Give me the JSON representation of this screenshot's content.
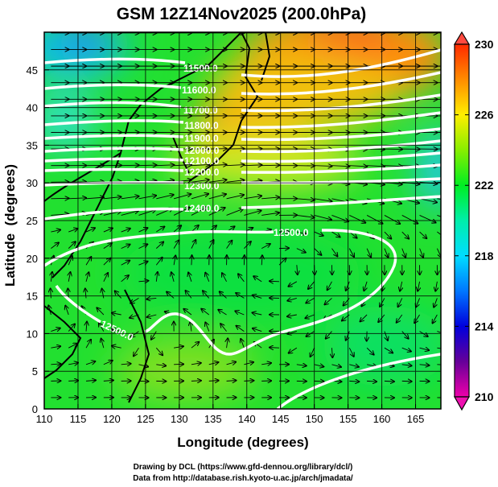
{
  "chart_data": {
    "type": "heatmap",
    "title": "GSM 12Z14Nov2025 (200.0hPa)",
    "xlabel": "Longitude (degrees)",
    "ylabel": "Latitude  (degrees)",
    "xlim": [
      110,
      168.75
    ],
    "ylim": [
      0,
      50
    ],
    "xticks": [
      "110",
      "115",
      "120",
      "125",
      "130",
      "135",
      "140",
      "145",
      "150",
      "155",
      "160",
      "165"
    ],
    "yticks": [
      "0",
      "5",
      "10",
      "15",
      "20",
      "25",
      "30",
      "35",
      "40",
      "45"
    ],
    "grid": true,
    "shading_variable": "temperature (K)",
    "colorbar": {
      "range": [
        210,
        230
      ],
      "tick_labels": [
        "230",
        "226",
        "222",
        "218",
        "214",
        "210"
      ],
      "colors": [
        "#ee00aa",
        "#660099",
        "#0000dd",
        "#0077ff",
        "#00ddff",
        "#00eeaa",
        "#00ee22",
        "#88ee00",
        "#ffee00",
        "#ff8c00",
        "#ff2a00"
      ]
    },
    "contours": {
      "variable": "geopotential height (m)",
      "labels": [
        "11500.0",
        "11600.0",
        "11700.0",
        "11800.0",
        "11900.0",
        "12000.0",
        "12100.0",
        "12200.0",
        "12300.0",
        "12400.0",
        "12500.0",
        "12500.0"
      ]
    },
    "features": {
      "anticyclone_center": [
        145,
        19
      ],
      "warm_max": [
        155,
        48
      ],
      "cold_min": [
        117,
        48
      ]
    },
    "streamlines": "wind vectors"
  },
  "footer": {
    "line1": "Drawing by DCL (https://www.gfd-dennou.org/library/dcl/)",
    "line2": "Data from http://database.rish.kyoto-u.ac.jp/arch/jmadata/"
  }
}
